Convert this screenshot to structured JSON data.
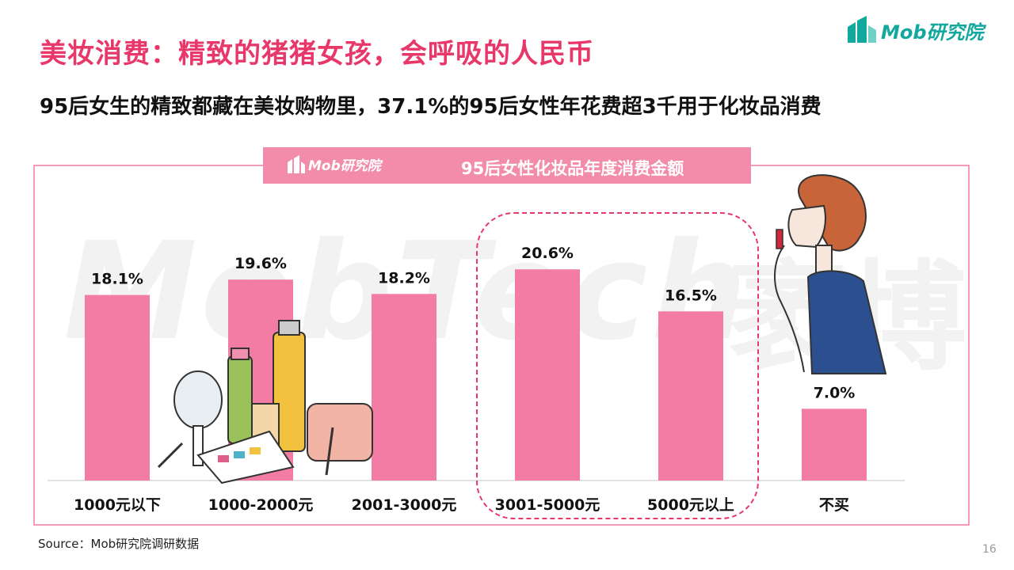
{
  "header": {
    "title": "美妆消费：精致的猪猪女孩，会呼吸的人民币",
    "subtitle": "95后女生的精致都藏在美妆购物里，37.1%的95后女性年花费超3千用于化妆品消费",
    "logo_text": "Mob研究院"
  },
  "banner": {
    "logo_text": "Mob研究院"
  },
  "watermark": {
    "text": "MobTech",
    "text_cn": "袤博"
  },
  "colors": {
    "bar": "#f27ca3",
    "title": "#e8386a",
    "banner": "#f38bab",
    "logo": "#13a89e"
  },
  "chart_data": {
    "type": "bar",
    "title": "95后女性化妆品年度消费金额",
    "categories": [
      "1000元以下",
      "1000-2000元",
      "2001-3000元",
      "3001-5000元",
      "5000元以上",
      "不买"
    ],
    "values": [
      18.1,
      19.6,
      18.2,
      20.6,
      16.5,
      7.0
    ],
    "value_labels": [
      "18.1%",
      "19.6%",
      "18.2%",
      "20.6%",
      "16.5%",
      "7.0%"
    ],
    "unit": "%",
    "highlighted_categories": [
      "3001-5000元",
      "5000元以上"
    ],
    "xlabel": "",
    "ylabel": "",
    "grid": false,
    "legend": "none"
  },
  "footer": {
    "source": "Source：Mob研究院调研数据",
    "page_number": "16"
  }
}
